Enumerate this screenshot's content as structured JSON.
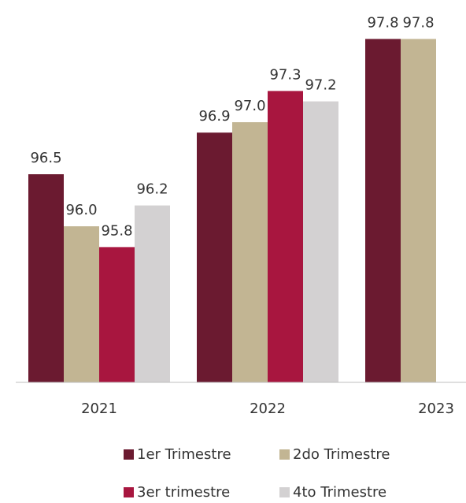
{
  "chart_data": {
    "type": "bar",
    "categories": [
      "2021",
      "2022",
      "2023"
    ],
    "series": [
      {
        "name": "1er Trimestre",
        "color": "#6b1a30",
        "values": [
          96.5,
          96.9,
          97.8
        ]
      },
      {
        "name": "2do Trimestre",
        "color": "#c2b593",
        "values": [
          96.0,
          97.0,
          97.8
        ]
      },
      {
        "name": "3er trimestre",
        "color": "#a8163f",
        "values": [
          95.8,
          97.3,
          null
        ]
      },
      {
        "name": "4to Trimestre",
        "color": "#d3d1d2",
        "values": [
          96.2,
          97.2,
          null
        ]
      }
    ],
    "value_labels": [
      [
        "96.5",
        "96.9",
        "97.8"
      ],
      [
        "96.0",
        "97.0",
        "97.8"
      ],
      [
        "95.8",
        "97.3",
        null
      ],
      [
        "96.2",
        "97.2",
        null
      ]
    ],
    "ylim": [
      94.5,
      98
    ]
  }
}
